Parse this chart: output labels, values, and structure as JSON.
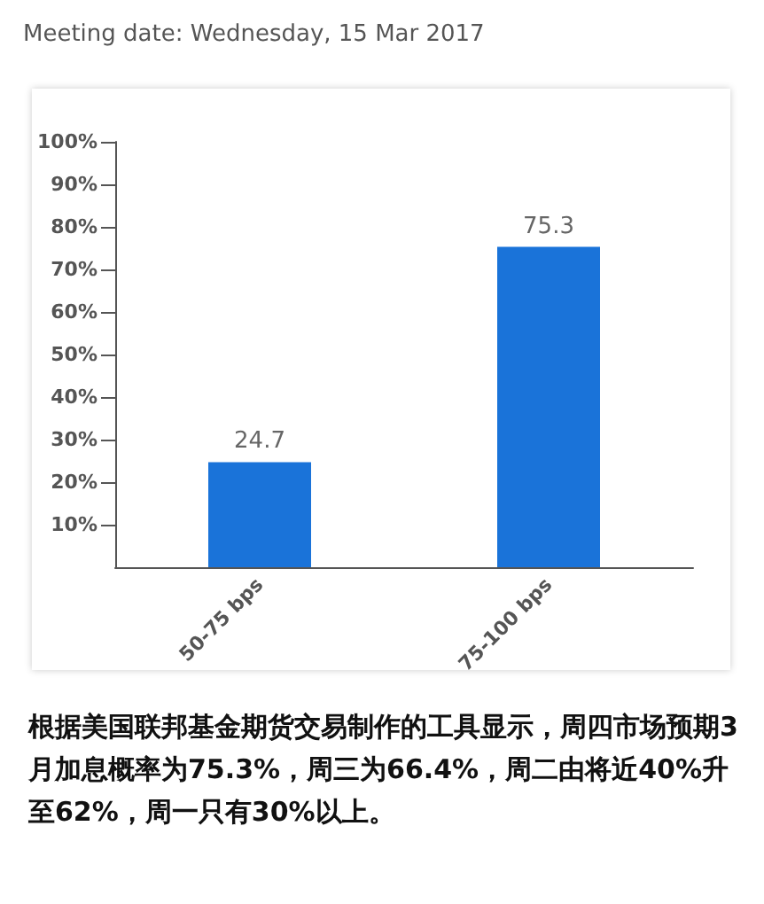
{
  "chart_data": {
    "type": "bar",
    "title": "Meeting date: Wednesday, 15 Mar 2017",
    "categories": [
      "50-75 bps",
      "75-100 bps"
    ],
    "values": [
      24.7,
      75.3
    ],
    "color": "#1a73d9",
    "ylim": [
      0,
      100
    ],
    "yticks": [
      {
        "value": 10,
        "label": "10%"
      },
      {
        "value": 20,
        "label": "20%"
      },
      {
        "value": 30,
        "label": "30%"
      },
      {
        "value": 40,
        "label": "40%"
      },
      {
        "value": 50,
        "label": "50%"
      },
      {
        "value": 60,
        "label": "60%"
      },
      {
        "value": 70,
        "label": "70%"
      },
      {
        "value": 80,
        "label": "80%"
      },
      {
        "value": 90,
        "label": "90%"
      },
      {
        "value": 100,
        "label": "100%"
      }
    ],
    "grid": false,
    "data_labels": true,
    "annotations": [
      "根据美国联邦基金期货交易制作的工具显示，周四市场预期3月加息概率为75.3%，周三为66.4%，周二由将近40%升至62%，周一只有30%以上。"
    ]
  }
}
